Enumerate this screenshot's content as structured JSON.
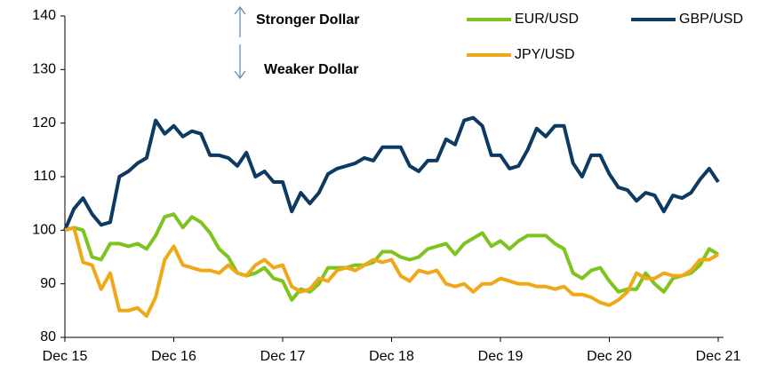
{
  "chart_data": {
    "type": "line",
    "annotations": [
      "Stronger Dollar",
      "Weaker Dollar"
    ],
    "categories": [
      "Dec 15",
      null,
      null,
      null,
      null,
      null,
      null,
      null,
      null,
      null,
      null,
      null,
      "Dec 16",
      null,
      null,
      null,
      null,
      null,
      null,
      null,
      null,
      null,
      null,
      null,
      "Dec 17",
      null,
      null,
      null,
      null,
      null,
      null,
      null,
      null,
      null,
      null,
      null,
      "Dec 18",
      null,
      null,
      null,
      null,
      null,
      null,
      null,
      null,
      null,
      null,
      null,
      "Dec 19",
      null,
      null,
      null,
      null,
      null,
      null,
      null,
      null,
      null,
      null,
      null,
      "Dec 20",
      null,
      null,
      null,
      null,
      null,
      null,
      null,
      null,
      null,
      null,
      null,
      "Dec 21"
    ],
    "series": [
      {
        "name": "EUR/USD",
        "color": "#7dc41f",
        "values": [
          100,
          100.5,
          100,
          95,
          94.5,
          97.5,
          97.5,
          97,
          97.5,
          96.5,
          99,
          102.5,
          103,
          100.5,
          102.5,
          101.5,
          99.5,
          96.5,
          95,
          92,
          91.5,
          92,
          93,
          91,
          90.5,
          87,
          89,
          88.5,
          90,
          93,
          93,
          93,
          93.5,
          93.5,
          94,
          96,
          96,
          95,
          94.5,
          95,
          96.5,
          97,
          97.5,
          95.5,
          97.5,
          98.5,
          99.5,
          97,
          98,
          96.5,
          98,
          99,
          99,
          99,
          97.5,
          96.5,
          92,
          91,
          92.5,
          93,
          90.5,
          88.5,
          89,
          89,
          92,
          90,
          88.5,
          91,
          91.5,
          92,
          93.5,
          96.5,
          95.5
        ]
      },
      {
        "name": "GBP/USD",
        "color": "#0d3a63",
        "values": [
          100,
          104,
          106,
          103,
          101,
          101.5,
          110,
          111,
          112.5,
          113.5,
          120.5,
          118,
          119.5,
          117.5,
          118.5,
          118,
          114,
          114,
          113.5,
          112,
          114.5,
          110,
          111,
          109,
          109,
          103.5,
          107,
          105,
          107,
          110.5,
          111.5,
          112,
          112.5,
          113.5,
          113,
          115.5,
          115.5,
          115.5,
          112,
          111,
          113,
          113,
          117,
          116,
          120.5,
          121,
          119.5,
          114,
          114,
          111.5,
          112,
          115,
          119,
          117.5,
          119.5,
          119.5,
          112.5,
          110,
          114,
          114,
          110.5,
          108,
          107.5,
          105.5,
          107,
          106.5,
          103.5,
          106.5,
          106,
          107,
          109.5,
          111.5,
          109
        ]
      },
      {
        "name": "JPY/USD",
        "color": "#f0a818",
        "values": [
          100,
          100.5,
          94,
          93.5,
          89,
          92,
          85,
          85,
          85.5,
          84,
          87.5,
          94.5,
          97,
          93.5,
          93,
          92.5,
          92.5,
          92,
          93.5,
          92,
          91.5,
          93.5,
          94.5,
          93,
          93.5,
          89.5,
          88.5,
          89,
          91,
          90.5,
          92.5,
          93,
          92.5,
          93.5,
          94.5,
          94,
          94.5,
          91.5,
          90.5,
          92.5,
          92,
          92.5,
          90,
          89.5,
          90,
          88.5,
          90,
          90,
          91,
          90.5,
          90,
          90,
          89.5,
          89.5,
          89,
          89.5,
          88,
          88,
          87.5,
          86.5,
          86,
          87,
          88.5,
          92,
          91,
          91,
          92,
          91.5,
          91.5,
          92.5,
          94.5,
          94.5,
          95.5
        ]
      }
    ],
    "ylim": [
      80,
      140
    ],
    "yticks": [
      80,
      90,
      100,
      110,
      120,
      130,
      140
    ],
    "grid": false
  }
}
